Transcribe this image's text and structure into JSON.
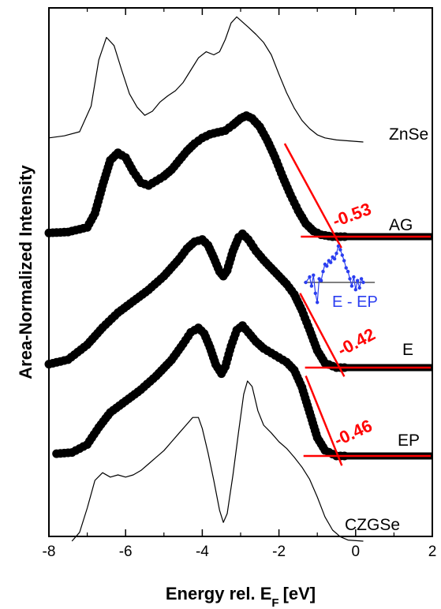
{
  "chart_data": {
    "type": "line",
    "title": "",
    "xlabel": "Energy rel. E",
    "xlabel_sub": "F",
    "xlabel_unit": "[eV]",
    "ylabel": "Area-Normalized Intensity",
    "xlim": [
      -8,
      2
    ],
    "x_ticks": [
      "-8",
      "-6",
      "-4",
      "-2",
      "0",
      "2"
    ],
    "x_tick_values": [
      -8,
      -6,
      -4,
      -2,
      0,
      2
    ],
    "grid": false,
    "legend": "none",
    "colors": {
      "axes": "#000000",
      "fit_lines": "#ff0000",
      "inset": "#2a3df0"
    },
    "series": [
      {
        "name": "ZnSe",
        "style": "thin-line",
        "points": [
          [
            -8.0,
            0.04
          ],
          [
            -7.6,
            0.06
          ],
          [
            -7.2,
            0.1
          ],
          [
            -6.9,
            0.35
          ],
          [
            -6.7,
            0.8
          ],
          [
            -6.5,
            1.02
          ],
          [
            -6.3,
            0.94
          ],
          [
            -6.1,
            0.7
          ],
          [
            -5.9,
            0.47
          ],
          [
            -5.7,
            0.34
          ],
          [
            -5.5,
            0.26
          ],
          [
            -5.3,
            0.3
          ],
          [
            -5.1,
            0.39
          ],
          [
            -4.9,
            0.45
          ],
          [
            -4.7,
            0.5
          ],
          [
            -4.5,
            0.58
          ],
          [
            -4.3,
            0.7
          ],
          [
            -4.1,
            0.82
          ],
          [
            -3.9,
            0.88
          ],
          [
            -3.7,
            0.85
          ],
          [
            -3.55,
            0.88
          ],
          [
            -3.4,
            1.0
          ],
          [
            -3.25,
            1.16
          ],
          [
            -3.1,
            1.22
          ],
          [
            -2.95,
            1.17
          ],
          [
            -2.8,
            1.12
          ],
          [
            -2.6,
            1.05
          ],
          [
            -2.4,
            0.97
          ],
          [
            -2.2,
            0.85
          ],
          [
            -2.0,
            0.66
          ],
          [
            -1.8,
            0.48
          ],
          [
            -1.6,
            0.33
          ],
          [
            -1.4,
            0.21
          ],
          [
            -1.2,
            0.13
          ],
          [
            -1.0,
            0.07
          ],
          [
            -0.8,
            0.04
          ],
          [
            -0.5,
            0.02
          ],
          [
            0.2,
            0.0
          ]
        ]
      },
      {
        "name": "AG",
        "style": "thick-markers",
        "points": [
          [
            -8.0,
            0.04
          ],
          [
            -7.5,
            0.05
          ],
          [
            -7.0,
            0.1
          ],
          [
            -6.8,
            0.25
          ],
          [
            -6.6,
            0.55
          ],
          [
            -6.4,
            0.82
          ],
          [
            -6.2,
            0.9
          ],
          [
            -6.0,
            0.85
          ],
          [
            -5.8,
            0.7
          ],
          [
            -5.6,
            0.58
          ],
          [
            -5.4,
            0.55
          ],
          [
            -5.2,
            0.6
          ],
          [
            -5.0,
            0.65
          ],
          [
            -4.8,
            0.72
          ],
          [
            -4.6,
            0.82
          ],
          [
            -4.4,
            0.92
          ],
          [
            -4.2,
            1.0
          ],
          [
            -4.0,
            1.06
          ],
          [
            -3.8,
            1.1
          ],
          [
            -3.6,
            1.12
          ],
          [
            -3.4,
            1.14
          ],
          [
            -3.2,
            1.2
          ],
          [
            -3.0,
            1.27
          ],
          [
            -2.85,
            1.3
          ],
          [
            -2.7,
            1.27
          ],
          [
            -2.5,
            1.18
          ],
          [
            -2.3,
            1.03
          ],
          [
            -2.1,
            0.85
          ],
          [
            -1.9,
            0.64
          ],
          [
            -1.7,
            0.45
          ],
          [
            -1.5,
            0.28
          ],
          [
            -1.3,
            0.14
          ],
          [
            -1.1,
            0.06
          ],
          [
            -0.9,
            0.02
          ],
          [
            -0.6,
            0.0
          ],
          [
            2.0,
            0.0
          ]
        ]
      },
      {
        "name": "E",
        "style": "thick-markers",
        "points": [
          [
            -8.0,
            0.03
          ],
          [
            -7.5,
            0.07
          ],
          [
            -7.0,
            0.2
          ],
          [
            -6.6,
            0.35
          ],
          [
            -6.2,
            0.48
          ],
          [
            -5.8,
            0.58
          ],
          [
            -5.4,
            0.68
          ],
          [
            -5.0,
            0.8
          ],
          [
            -4.6,
            0.95
          ],
          [
            -4.4,
            1.04
          ],
          [
            -4.2,
            1.1
          ],
          [
            -4.0,
            1.12
          ],
          [
            -3.85,
            1.07
          ],
          [
            -3.7,
            0.96
          ],
          [
            -3.55,
            0.84
          ],
          [
            -3.45,
            0.8
          ],
          [
            -3.35,
            0.85
          ],
          [
            -3.2,
            1.02
          ],
          [
            -3.05,
            1.14
          ],
          [
            -2.95,
            1.17
          ],
          [
            -2.8,
            1.12
          ],
          [
            -2.6,
            1.02
          ],
          [
            -2.4,
            0.94
          ],
          [
            -2.2,
            0.87
          ],
          [
            -2.0,
            0.8
          ],
          [
            -1.8,
            0.73
          ],
          [
            -1.6,
            0.64
          ],
          [
            -1.4,
            0.5
          ],
          [
            -1.2,
            0.33
          ],
          [
            -1.0,
            0.15
          ],
          [
            -0.8,
            0.04
          ],
          [
            -0.5,
            0.0
          ],
          [
            2.0,
            0.0
          ]
        ]
      },
      {
        "name": "EP",
        "style": "thick-markers",
        "points": [
          [
            -7.8,
            0.02
          ],
          [
            -7.4,
            0.03
          ],
          [
            -7.0,
            0.1
          ],
          [
            -6.7,
            0.25
          ],
          [
            -6.4,
            0.38
          ],
          [
            -6.0,
            0.48
          ],
          [
            -5.6,
            0.58
          ],
          [
            -5.2,
            0.7
          ],
          [
            -4.8,
            0.84
          ],
          [
            -4.5,
            0.98
          ],
          [
            -4.3,
            1.08
          ],
          [
            -4.1,
            1.12
          ],
          [
            -3.95,
            1.07
          ],
          [
            -3.8,
            0.95
          ],
          [
            -3.65,
            0.8
          ],
          [
            -3.5,
            0.72
          ],
          [
            -3.4,
            0.78
          ],
          [
            -3.25,
            0.96
          ],
          [
            -3.1,
            1.1
          ],
          [
            -2.95,
            1.14
          ],
          [
            -2.8,
            1.08
          ],
          [
            -2.6,
            1.0
          ],
          [
            -2.4,
            0.94
          ],
          [
            -2.2,
            0.9
          ],
          [
            -2.0,
            0.86
          ],
          [
            -1.8,
            0.82
          ],
          [
            -1.6,
            0.75
          ],
          [
            -1.4,
            0.6
          ],
          [
            -1.2,
            0.38
          ],
          [
            -1.0,
            0.16
          ],
          [
            -0.8,
            0.05
          ],
          [
            -0.5,
            0.0
          ],
          [
            2.0,
            0.0
          ]
        ]
      },
      {
        "name": "CZGSe",
        "style": "thin-line",
        "points": [
          [
            -7.4,
            0.0
          ],
          [
            -7.2,
            0.08
          ],
          [
            -7.0,
            0.3
          ],
          [
            -6.8,
            0.55
          ],
          [
            -6.6,
            0.62
          ],
          [
            -6.4,
            0.58
          ],
          [
            -6.2,
            0.6
          ],
          [
            -6.0,
            0.58
          ],
          [
            -5.8,
            0.6
          ],
          [
            -5.6,
            0.64
          ],
          [
            -5.4,
            0.7
          ],
          [
            -5.2,
            0.76
          ],
          [
            -5.0,
            0.82
          ],
          [
            -4.8,
            0.9
          ],
          [
            -4.6,
            0.98
          ],
          [
            -4.4,
            1.06
          ],
          [
            -4.25,
            1.12
          ],
          [
            -4.1,
            1.12
          ],
          [
            -4.0,
            1.02
          ],
          [
            -3.85,
            0.8
          ],
          [
            -3.7,
            0.55
          ],
          [
            -3.55,
            0.28
          ],
          [
            -3.45,
            0.17
          ],
          [
            -3.35,
            0.25
          ],
          [
            -3.2,
            0.6
          ],
          [
            -3.05,
            1.0
          ],
          [
            -2.92,
            1.33
          ],
          [
            -2.82,
            1.45
          ],
          [
            -2.7,
            1.4
          ],
          [
            -2.55,
            1.18
          ],
          [
            -2.4,
            1.05
          ],
          [
            -2.2,
            0.98
          ],
          [
            -2.0,
            0.9
          ],
          [
            -1.8,
            0.84
          ],
          [
            -1.6,
            0.76
          ],
          [
            -1.4,
            0.67
          ],
          [
            -1.2,
            0.56
          ],
          [
            -1.0,
            0.4
          ],
          [
            -0.8,
            0.22
          ],
          [
            -0.6,
            0.1
          ],
          [
            -0.4,
            0.04
          ],
          [
            -0.2,
            0.01
          ],
          [
            0.2,
            0.0
          ]
        ]
      }
    ],
    "edge_fits": [
      {
        "series": "AG",
        "label": "-0.53",
        "edge": -0.53
      },
      {
        "series": "E",
        "label": "-0.42",
        "edge": -0.42
      },
      {
        "series": "EP",
        "label": "-0.46",
        "edge": -0.46
      }
    ],
    "inset": {
      "label": "E - EP",
      "points": [
        [
          -1.3,
          0.0
        ],
        [
          -1.2,
          0.15
        ],
        [
          -1.15,
          -0.1
        ],
        [
          -1.1,
          0.2
        ],
        [
          -1.05,
          -0.3
        ],
        [
          -1.0,
          -0.55
        ],
        [
          -0.95,
          0.1
        ],
        [
          -0.9,
          0.05
        ],
        [
          -0.85,
          0.3
        ],
        [
          -0.8,
          0.5
        ],
        [
          -0.75,
          0.45
        ],
        [
          -0.7,
          0.6
        ],
        [
          -0.65,
          0.55
        ],
        [
          -0.6,
          0.7
        ],
        [
          -0.55,
          0.65
        ],
        [
          -0.5,
          0.8
        ],
        [
          -0.45,
          1.0
        ],
        [
          -0.4,
          0.9
        ],
        [
          -0.35,
          0.75
        ],
        [
          -0.3,
          0.6
        ],
        [
          -0.25,
          0.4
        ],
        [
          -0.2,
          0.3
        ],
        [
          -0.15,
          0.1
        ],
        [
          -0.1,
          -0.1
        ],
        [
          -0.05,
          0.15
        ],
        [
          0.0,
          -0.2
        ],
        [
          0.05,
          0.05
        ],
        [
          0.1,
          -0.15
        ],
        [
          0.15,
          0.1
        ],
        [
          0.2,
          0.0
        ]
      ]
    }
  }
}
